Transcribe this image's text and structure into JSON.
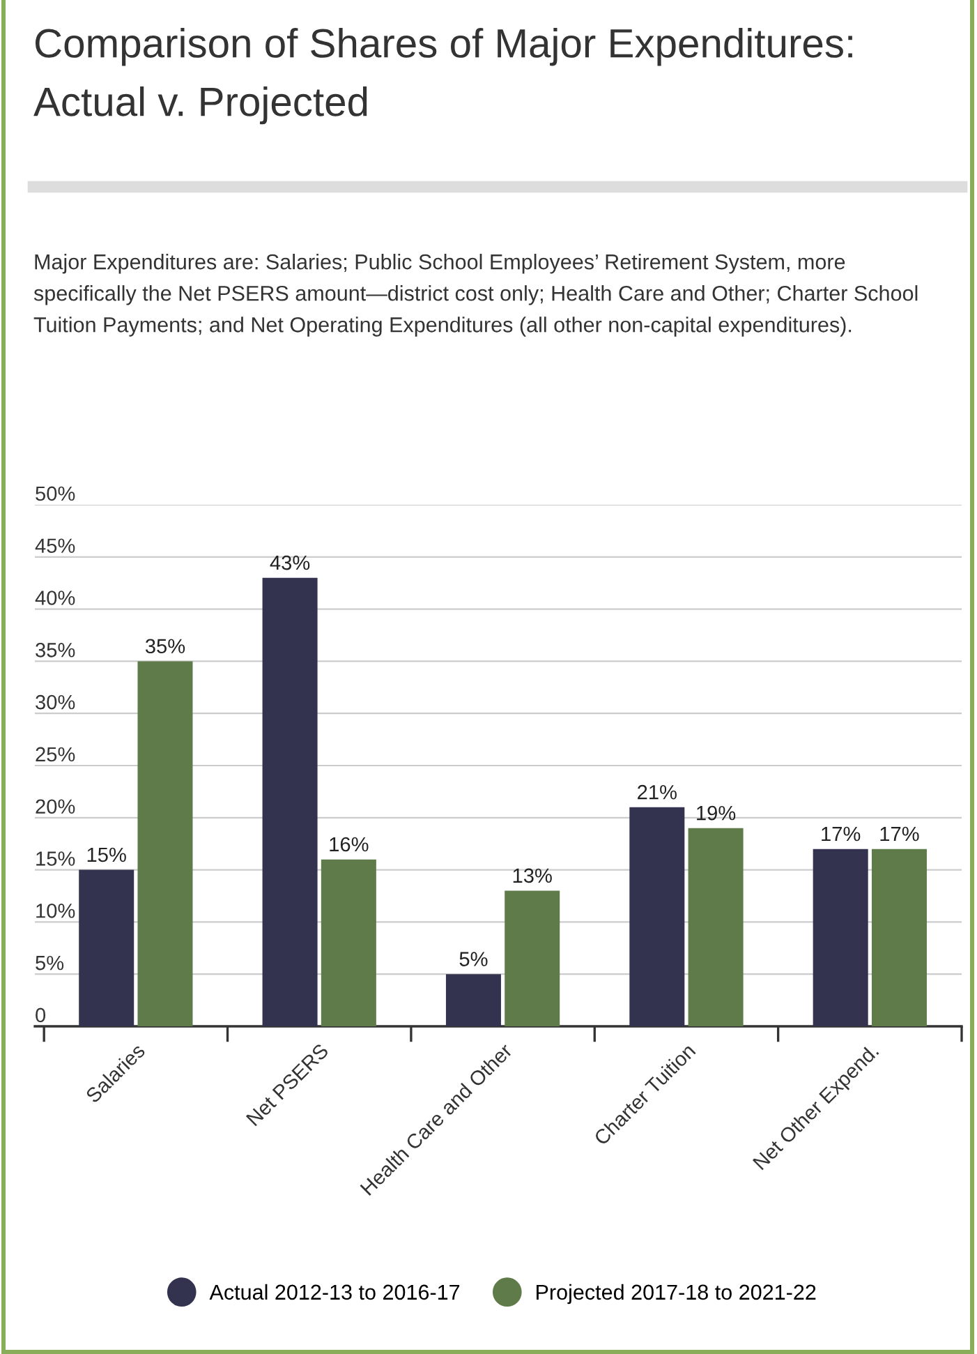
{
  "chart_data": {
    "type": "bar",
    "title": "Comparison of Shares of Major Expenditures: Actual v. Projected",
    "subtitle": "Major Expenditures are: Salaries; Public School Employees’ Retirement System, more specifically the Net PSERS amount—district cost only; Health Care and Other; Charter School Tuition Payments; and Net Operating Expenditures (all other non-capital expenditures).",
    "categories": [
      "Salaries",
      "Net PSERS",
      "Health Care and Other",
      "Charter Tuition",
      "Net Other Expend."
    ],
    "series": [
      {
        "name": "Actual 2012-13 to 2016-17",
        "color": "#33334f",
        "values": [
          15,
          43,
          5,
          21,
          17
        ],
        "value_labels": [
          "15%",
          "43%",
          "5%",
          "21%",
          "17%"
        ]
      },
      {
        "name": "Projected 2017-18 to 2021-22",
        "color": "#5e7b49",
        "values": [
          35,
          16,
          13,
          19,
          17
        ],
        "value_labels": [
          "35%",
          "16%",
          "13%",
          "19%",
          "17%"
        ]
      }
    ],
    "ylim": [
      0,
      50
    ],
    "yticks": [
      {
        "value": 0,
        "label": "0"
      },
      {
        "value": 5,
        "label": "5%"
      },
      {
        "value": 10,
        "label": "10%"
      },
      {
        "value": 15,
        "label": "15%"
      },
      {
        "value": 20,
        "label": "20%"
      },
      {
        "value": 25,
        "label": "25%"
      },
      {
        "value": 30,
        "label": "30%"
      },
      {
        "value": 35,
        "label": "35%"
      },
      {
        "value": 40,
        "label": "40%"
      },
      {
        "value": 45,
        "label": "45%"
      },
      {
        "value": 50,
        "label": "50%"
      }
    ],
    "grid": "y",
    "legend": "bottom"
  }
}
